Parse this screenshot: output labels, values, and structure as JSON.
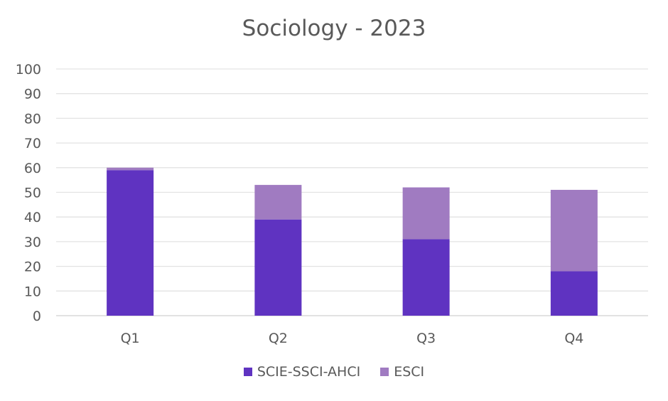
{
  "chart_data": {
    "type": "bar",
    "stacked": true,
    "title": "Sociology - 2023",
    "xlabel": "",
    "ylabel": "",
    "ylim": [
      0,
      100
    ],
    "yticks": [
      0,
      10,
      20,
      30,
      40,
      50,
      60,
      70,
      80,
      90,
      100
    ],
    "grid": true,
    "legend_position": "bottom",
    "categories": [
      "Q1",
      "Q2",
      "Q3",
      "Q4"
    ],
    "series": [
      {
        "name": "SCIE-SSCI-AHCI",
        "color": "#5f33c1",
        "values": [
          59,
          39,
          31,
          18
        ]
      },
      {
        "name": "ESCI",
        "color": "#a07bc1",
        "values": [
          1,
          14,
          21,
          33
        ]
      }
    ]
  }
}
